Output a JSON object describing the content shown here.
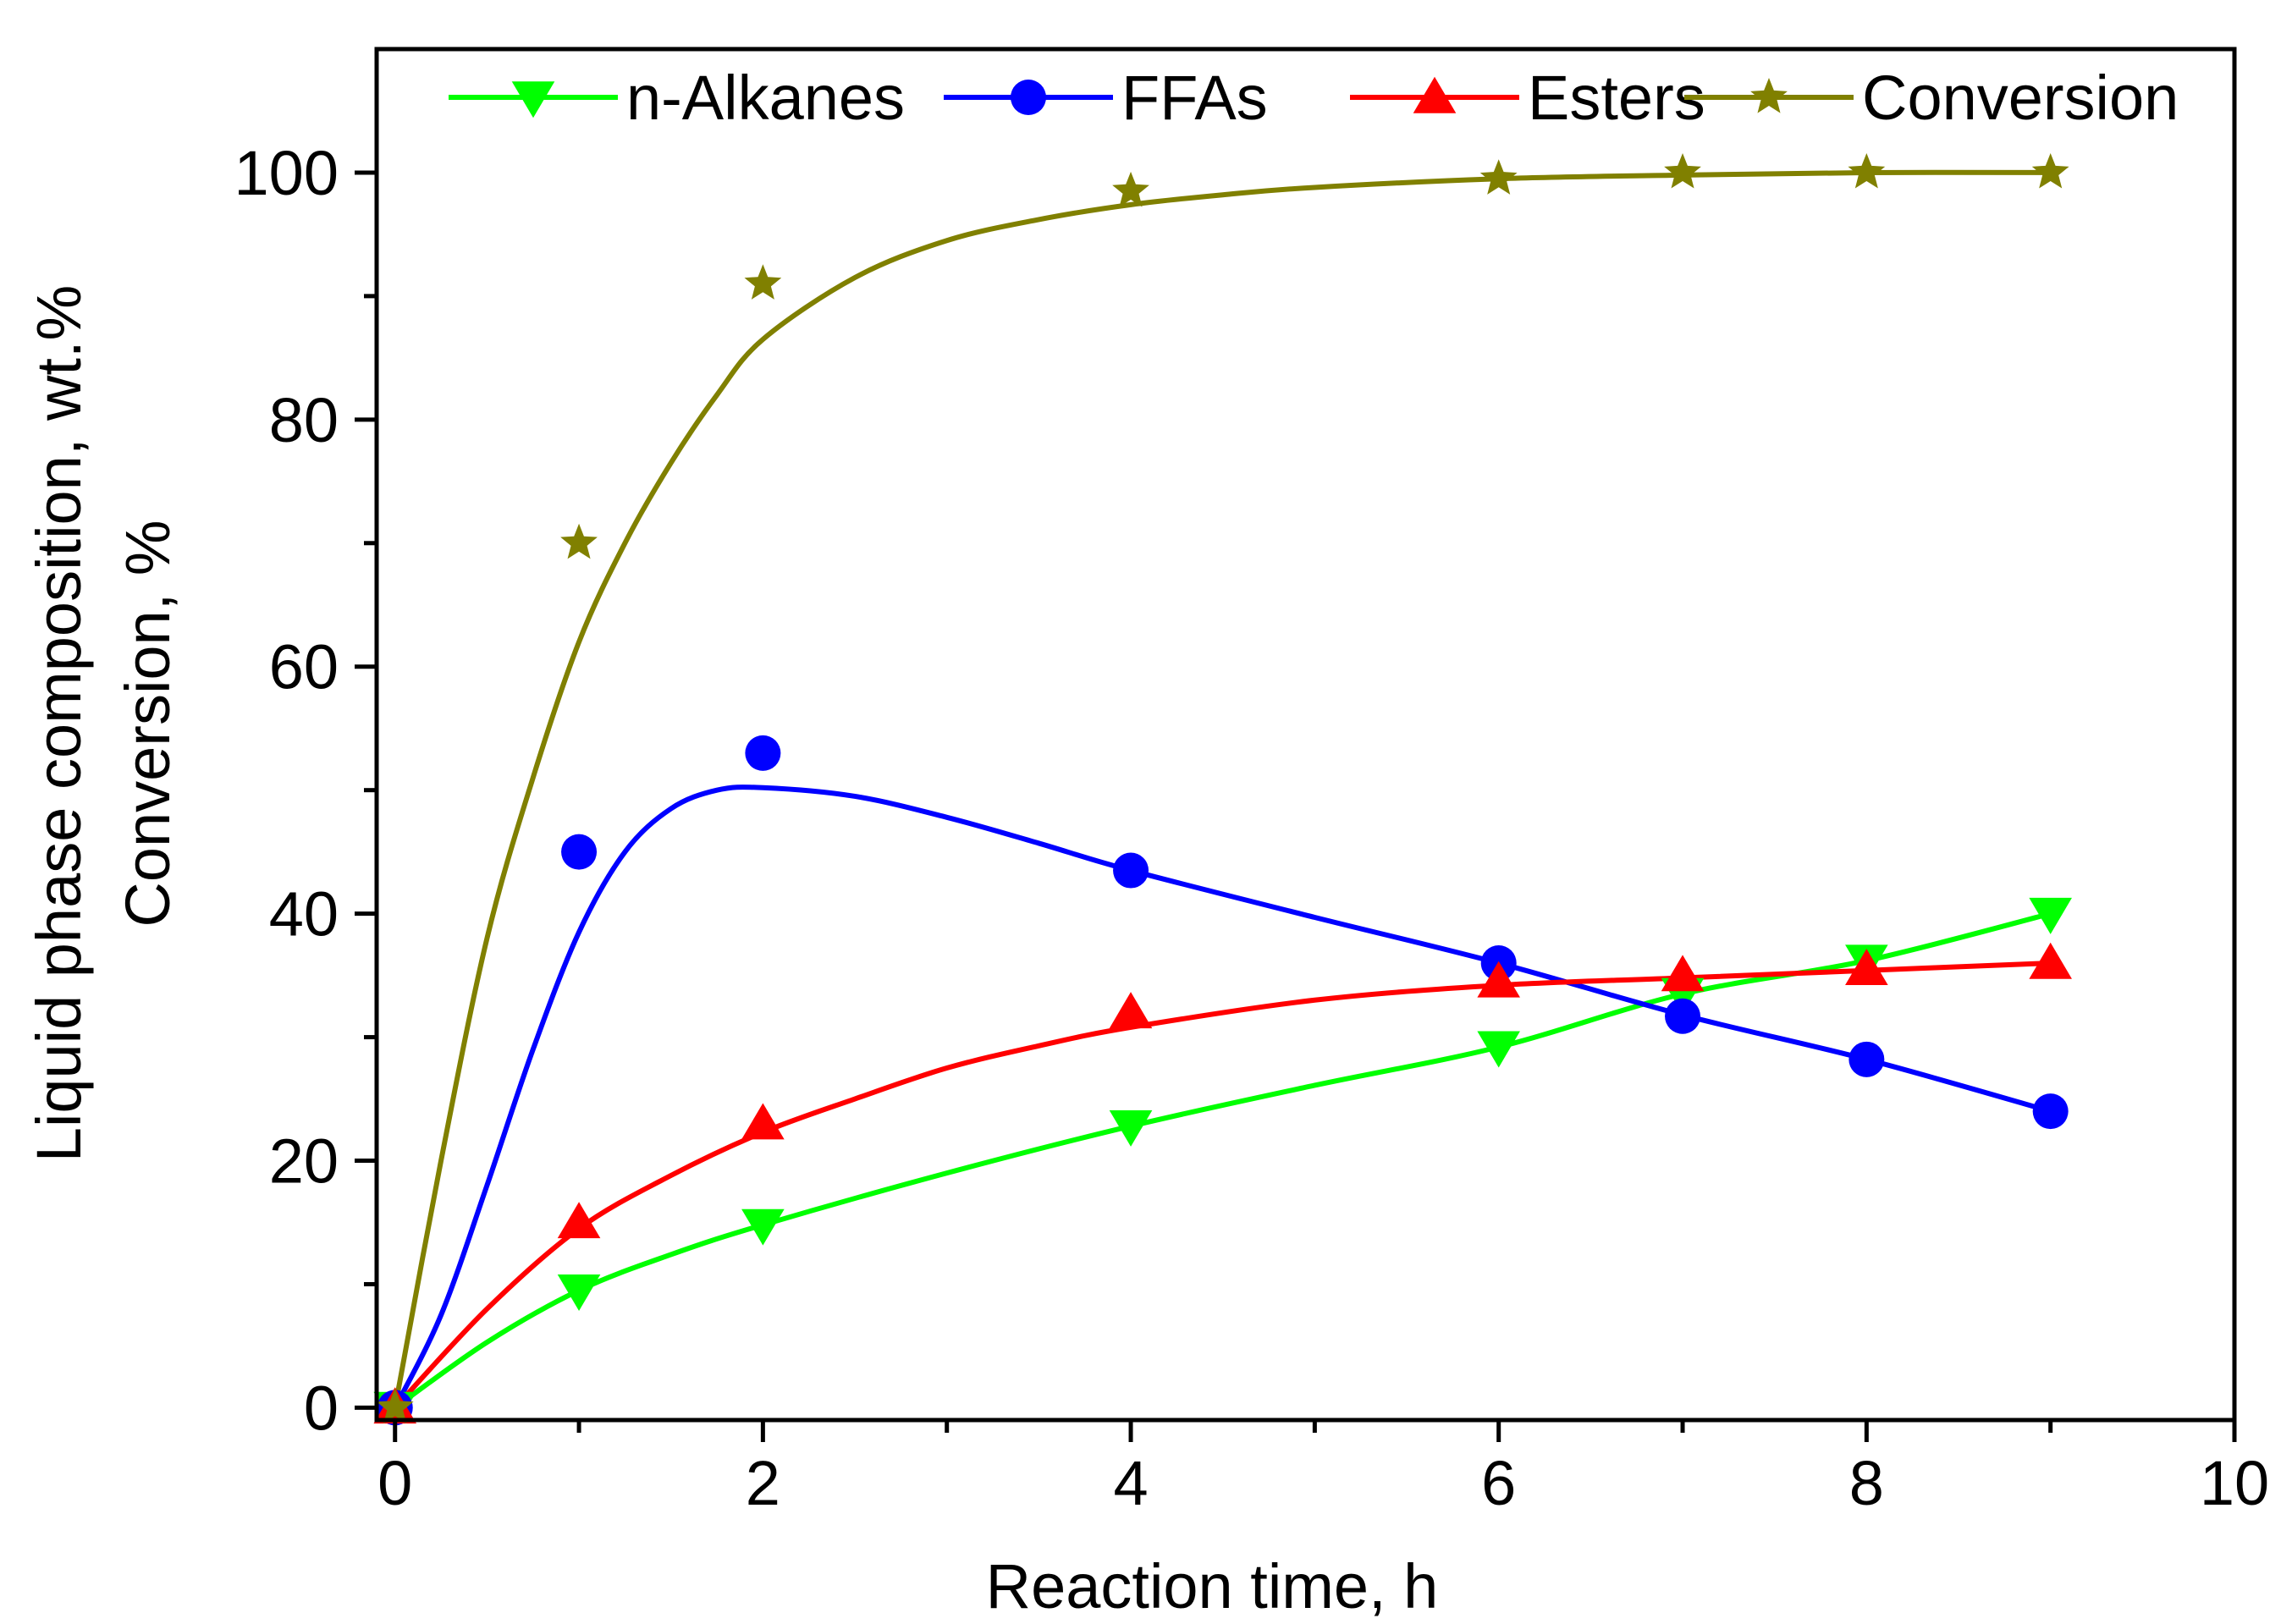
{
  "chart_data": {
    "type": "line",
    "xlabel": "Reaction time, h",
    "ylabel_line1": "Liquid phase composition, wt.%",
    "ylabel_line2": "Conversion, %",
    "xlim": [
      -0.1,
      10
    ],
    "ylim": [
      -1,
      110
    ],
    "x_ticks": [
      0,
      2,
      4,
      6,
      8,
      10
    ],
    "x_minor_ticks": [
      1,
      3,
      5,
      7,
      9
    ],
    "y_ticks": [
      0,
      20,
      40,
      60,
      80,
      100
    ],
    "y_minor_ticks": [
      10,
      30,
      50,
      70,
      90
    ],
    "legend_position": "top",
    "series": [
      {
        "name": "n-Alkanes",
        "color": "#00ff00",
        "marker": "triangle-down",
        "x": [
          0,
          1,
          2,
          4,
          6,
          7,
          8,
          9
        ],
        "y": [
          0,
          9.5,
          14.8,
          22.8,
          29.2,
          33.5,
          36.2,
          40
        ],
        "fit": [
          [
            0,
            0
          ],
          [
            0.5,
            5.3
          ],
          [
            1,
            9.5
          ],
          [
            1.5,
            12.4
          ],
          [
            2,
            14.8
          ],
          [
            3,
            19
          ],
          [
            4,
            22.8
          ],
          [
            5,
            26.1
          ],
          [
            6,
            29.2
          ],
          [
            7,
            33.5
          ],
          [
            8,
            36.2
          ],
          [
            9,
            40
          ]
        ]
      },
      {
        "name": "FFAs",
        "color": "#0000ff",
        "marker": "circle",
        "x": [
          0,
          1,
          2,
          4,
          6,
          7,
          8,
          9
        ],
        "y": [
          0,
          45,
          53,
          43.5,
          36,
          31.7,
          28.2,
          24
        ],
        "fit": [
          [
            0,
            0
          ],
          [
            0.25,
            7.5
          ],
          [
            0.5,
            18
          ],
          [
            0.75,
            29
          ],
          [
            1,
            38.5
          ],
          [
            1.25,
            45
          ],
          [
            1.5,
            48.5
          ],
          [
            1.75,
            50
          ],
          [
            2,
            50.2
          ],
          [
            2.5,
            49.5
          ],
          [
            3,
            47.8
          ],
          [
            3.5,
            45.7
          ],
          [
            4,
            43.5
          ],
          [
            5,
            39.7
          ],
          [
            6,
            36
          ],
          [
            7,
            31.8
          ],
          [
            8,
            28.2
          ],
          [
            9,
            24
          ]
        ]
      },
      {
        "name": "Esters",
        "color": "#ff0000",
        "marker": "triangle-up",
        "x": [
          0,
          1,
          2,
          4,
          6,
          7,
          8,
          9
        ],
        "y": [
          0,
          15,
          23,
          32,
          34.5,
          35,
          35.5,
          36
        ],
        "fit": [
          [
            0,
            0
          ],
          [
            0.5,
            8
          ],
          [
            1,
            14.5
          ],
          [
            1.5,
            18.8
          ],
          [
            2,
            22.3
          ],
          [
            2.5,
            25
          ],
          [
            3,
            27.5
          ],
          [
            3.5,
            29.3
          ],
          [
            4,
            30.8
          ],
          [
            5,
            33
          ],
          [
            6,
            34.2
          ],
          [
            7,
            34.8
          ],
          [
            8,
            35.4
          ],
          [
            9,
            36
          ]
        ]
      },
      {
        "name": "Conversion",
        "color": "#808000",
        "marker": "star",
        "x": [
          0,
          1,
          2,
          4,
          6,
          7,
          8,
          9
        ],
        "y": [
          0,
          70,
          91,
          98.5,
          99.5,
          100,
          100,
          100
        ],
        "fit": [
          [
            0,
            0
          ],
          [
            0.25,
            20
          ],
          [
            0.5,
            38
          ],
          [
            0.75,
            51
          ],
          [
            1,
            62
          ],
          [
            1.25,
            70
          ],
          [
            1.5,
            76.5
          ],
          [
            1.75,
            82
          ],
          [
            2,
            86.5
          ],
          [
            2.5,
            91.5
          ],
          [
            3,
            94.5
          ],
          [
            3.5,
            96.2
          ],
          [
            4,
            97.4
          ],
          [
            4.5,
            98.2
          ],
          [
            5,
            98.8
          ],
          [
            6,
            99.5
          ],
          [
            7,
            99.8
          ],
          [
            8,
            100
          ],
          [
            9,
            100
          ]
        ]
      }
    ]
  }
}
